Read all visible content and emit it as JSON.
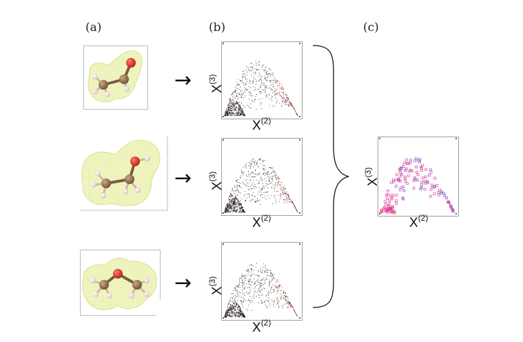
{
  "labels": {
    "a": "(a)",
    "b": "(b)",
    "c": "(c)"
  },
  "axis": {
    "x_main": "X",
    "x_sup": "(2)",
    "y_main": "X",
    "y_sup": "(3)"
  },
  "arrow_glyph": "→",
  "icons": {
    "molecules": [
      "acetaldehyde-molecule-icon",
      "ethanol-molecule-icon",
      "dimethyl-ether-molecule-icon"
    ],
    "brace": "right-curly-brace-icon"
  },
  "colors": {
    "carbon": "#8a6a4a",
    "oxygen": "#e0301e",
    "hydrogen": "#f1dcdc",
    "isosurface": "#f1f5b8",
    "isosurface_line": "#d2dc7a",
    "scatter_dark": "#2a1e1e",
    "scatter_red": "#c0392b",
    "scatter_pink": "#e0479a",
    "scatter_violet": "#6b5bd6"
  }
}
